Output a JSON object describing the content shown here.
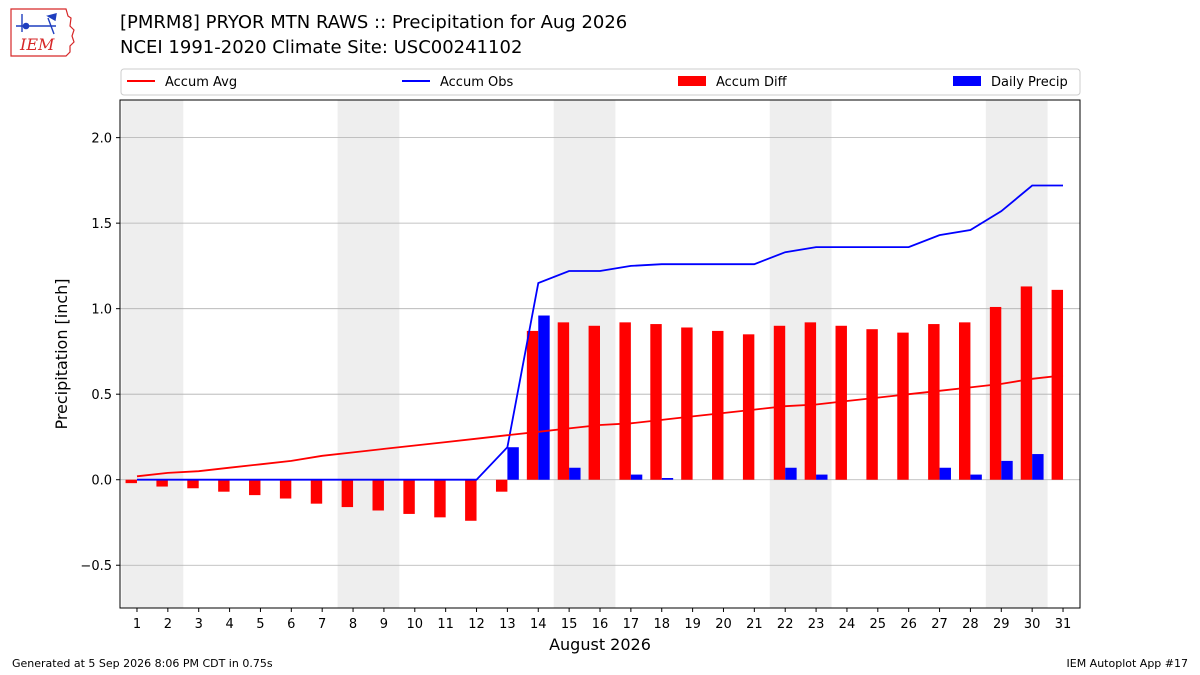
{
  "header": {
    "title": "[PMRM8] PRYOR MTN RAWS :: Precipitation for Aug 2026",
    "subtitle": "NCEI 1991-2020 Climate Site: USC00241102"
  },
  "logo": {
    "text": "IEM",
    "icon": "iem-iowa-logo"
  },
  "footer": {
    "generated": "Generated at 5 Sep 2026 8:06 PM CDT in 0.75s",
    "app": "IEM Autoplot App #17"
  },
  "colors": {
    "accum_avg": "#ff0000",
    "accum_obs": "#0000ff",
    "accum_diff": "#ff0000",
    "daily_precip": "#0000ff",
    "weekend_shade": "#eeeeee",
    "grid": "#b0b0b0"
  },
  "chart_data": {
    "type": "bar",
    "xlabel": "August 2026",
    "ylabel": "Precipitation [inch]",
    "ylim": [
      -0.75,
      2.22
    ],
    "yticks": [
      -0.5,
      0.0,
      0.5,
      1.0,
      1.5,
      2.0
    ],
    "ytick_labels": [
      "−0.5",
      "0.0",
      "0.5",
      "1.0",
      "1.5",
      "2.0"
    ],
    "grid": true,
    "legend_placement": "top",
    "x": [
      1,
      2,
      3,
      4,
      5,
      6,
      7,
      8,
      9,
      10,
      11,
      12,
      13,
      14,
      15,
      16,
      17,
      18,
      19,
      20,
      21,
      22,
      23,
      24,
      25,
      26,
      27,
      28,
      29,
      30,
      31
    ],
    "shaded_days": [
      [
        1,
        2
      ],
      [
        8,
        9
      ],
      [
        15,
        16
      ],
      [
        22,
        23
      ],
      [
        29,
        30
      ]
    ],
    "series": [
      {
        "name": "Accum Avg",
        "type": "line",
        "values": [
          0.02,
          0.04,
          0.05,
          0.07,
          0.09,
          0.11,
          0.14,
          0.16,
          0.18,
          0.2,
          0.22,
          0.24,
          0.26,
          0.28,
          0.3,
          0.32,
          0.33,
          0.35,
          0.37,
          0.39,
          0.41,
          0.43,
          0.44,
          0.46,
          0.48,
          0.5,
          0.52,
          0.54,
          0.56,
          0.59,
          0.61
        ]
      },
      {
        "name": "Accum Obs",
        "type": "line",
        "values": [
          0.0,
          0.0,
          0.0,
          0.0,
          0.0,
          0.0,
          0.0,
          0.0,
          0.0,
          0.0,
          0.0,
          0.0,
          0.19,
          1.15,
          1.22,
          1.22,
          1.25,
          1.26,
          1.26,
          1.26,
          1.26,
          1.33,
          1.36,
          1.36,
          1.36,
          1.36,
          1.43,
          1.46,
          1.57,
          1.72,
          1.72
        ]
      },
      {
        "name": "Accum Diff",
        "type": "bar",
        "values": [
          -0.02,
          -0.04,
          -0.05,
          -0.07,
          -0.09,
          -0.11,
          -0.14,
          -0.16,
          -0.18,
          -0.2,
          -0.22,
          -0.24,
          -0.07,
          0.87,
          0.92,
          0.9,
          0.92,
          0.91,
          0.89,
          0.87,
          0.85,
          0.9,
          0.92,
          0.9,
          0.88,
          0.86,
          0.91,
          0.92,
          1.01,
          1.13,
          1.11
        ]
      },
      {
        "name": "Daily Precip",
        "type": "bar",
        "values": [
          0,
          0,
          0,
          0,
          0,
          0,
          0,
          0,
          0,
          0,
          0,
          0,
          0.19,
          0.96,
          0.07,
          0,
          0.03,
          0.01,
          0,
          0,
          0,
          0.07,
          0.03,
          0,
          0,
          0,
          0.07,
          0.03,
          0.11,
          0.15,
          0
        ]
      }
    ]
  }
}
